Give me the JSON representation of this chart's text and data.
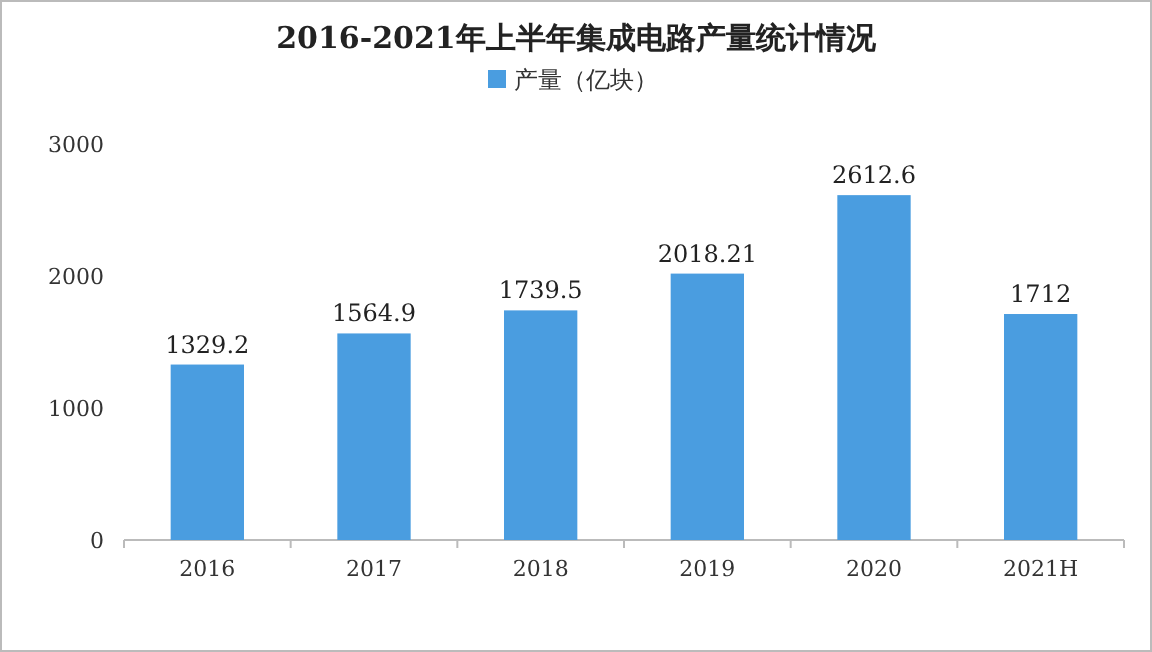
{
  "chart_data": {
    "type": "bar",
    "title": "2016-2021年上半年集成电路产量统计情况",
    "categories": [
      "2016",
      "2017",
      "2018",
      "2019",
      "2020",
      "2021H"
    ],
    "series": [
      {
        "name": "产量（亿块）",
        "color": "#4a9de0",
        "values": [
          1329.2,
          1564.9,
          1739.5,
          2018.21,
          2612.6,
          1712
        ]
      }
    ],
    "ylim": [
      0,
      3000
    ],
    "yticks": [
      0,
      1000,
      2000,
      3000
    ],
    "data_labels": true,
    "legend": "top",
    "grid": false
  }
}
